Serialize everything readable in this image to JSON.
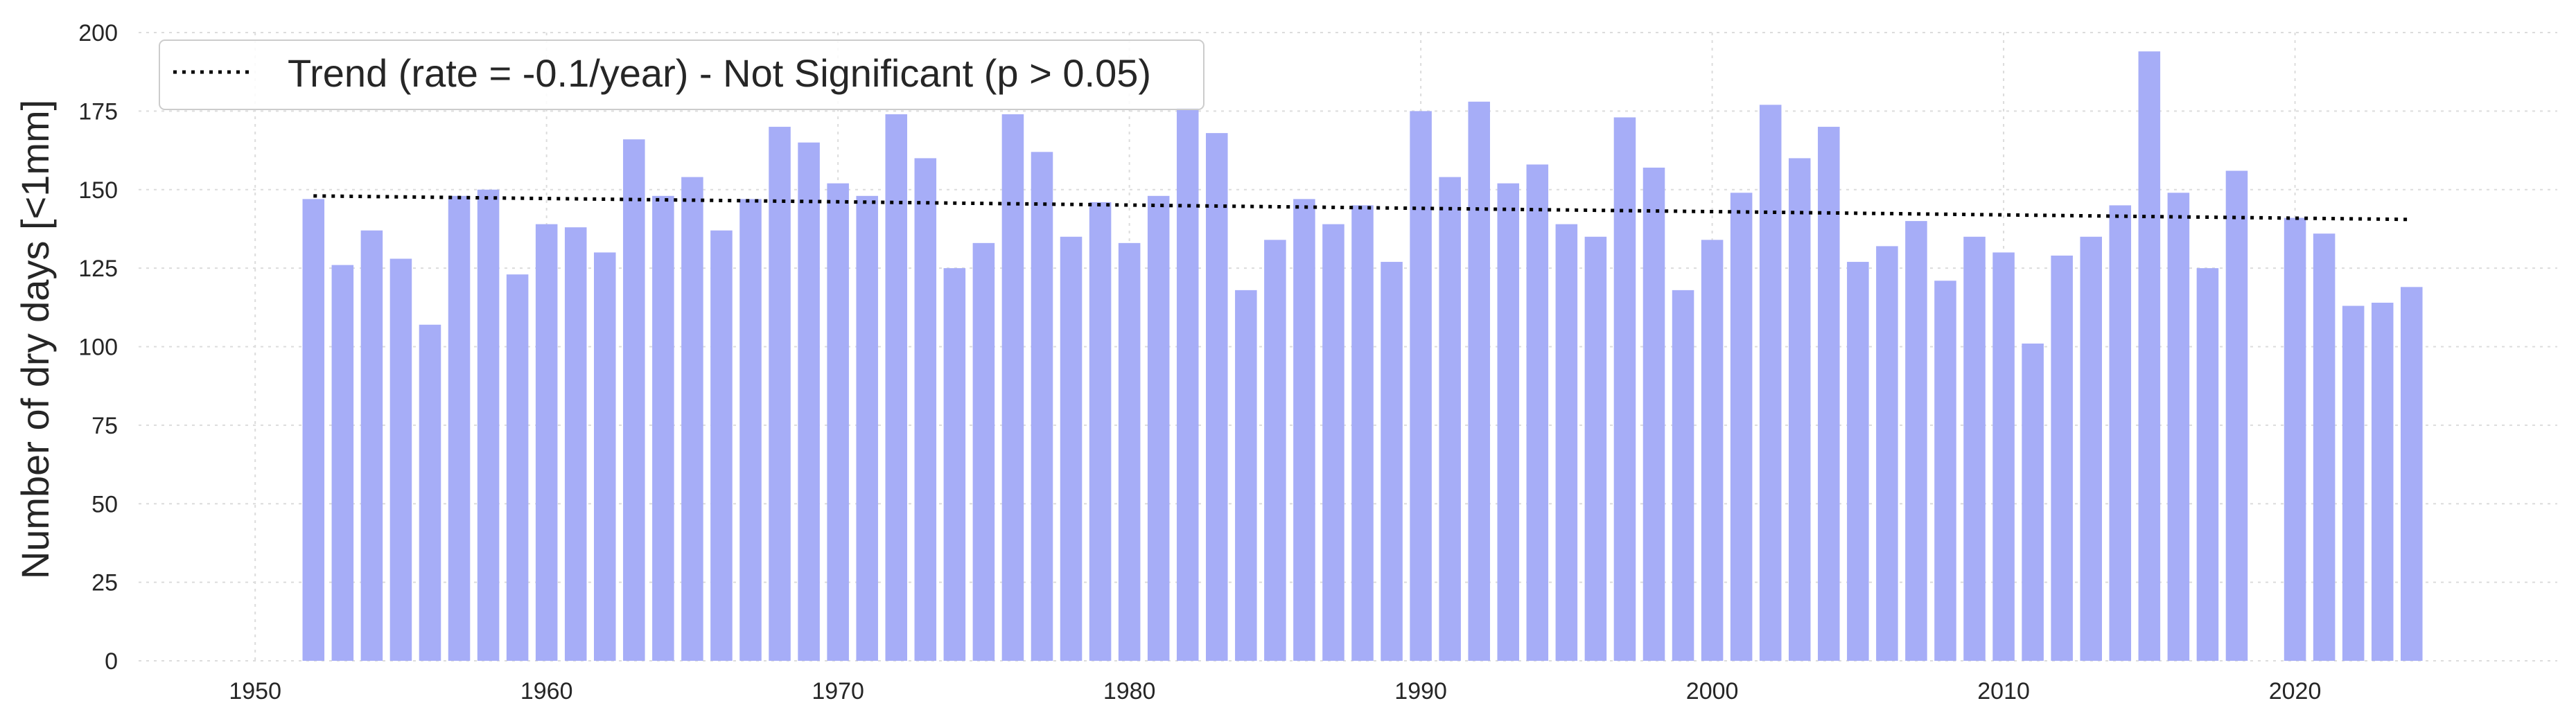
{
  "chart_data": {
    "type": "bar",
    "title": "",
    "xlabel": "",
    "ylabel": "Number of dry days [<1mm]",
    "xlim": [
      1946,
      2029
    ],
    "ylim": [
      0,
      200
    ],
    "x_ticks": [
      1950,
      1960,
      1970,
      1980,
      1990,
      2000,
      2010,
      2020
    ],
    "y_ticks": [
      0,
      25,
      50,
      75,
      100,
      125,
      150,
      175,
      200
    ],
    "grid": true,
    "legend_position": "top-left",
    "colors": {
      "bars": "#a6adf7",
      "trend": "#000000"
    },
    "series": [
      {
        "type": "bar",
        "x": [
          1952,
          1953,
          1954,
          1955,
          1956,
          1957,
          1958,
          1959,
          1960,
          1961,
          1962,
          1963,
          1964,
          1965,
          1966,
          1967,
          1968,
          1969,
          1970,
          1971,
          1972,
          1973,
          1974,
          1975,
          1976,
          1977,
          1978,
          1979,
          1980,
          1981,
          1982,
          1983,
          1984,
          1985,
          1986,
          1987,
          1988,
          1989,
          1990,
          1991,
          1992,
          1993,
          1994,
          1995,
          1996,
          1997,
          1998,
          1999,
          2000,
          2001,
          2002,
          2003,
          2004,
          2005,
          2006,
          2007,
          2008,
          2009,
          2010,
          2011,
          2012,
          2013,
          2014,
          2015,
          2016,
          2017,
          2018,
          2020,
          2021,
          2022,
          2023,
          2024
        ],
        "values": [
          147,
          126,
          137,
          128,
          107,
          148,
          150,
          123,
          139,
          138,
          130,
          166,
          148,
          154,
          137,
          147,
          170,
          165,
          152,
          148,
          174,
          160,
          125,
          133,
          174,
          162,
          135,
          146,
          133,
          148,
          176,
          168,
          118,
          134,
          147,
          139,
          145,
          127,
          175,
          154,
          178,
          152,
          158,
          139,
          135,
          173,
          157,
          118,
          134,
          149,
          177,
          160,
          170,
          127,
          132,
          140,
          121,
          135,
          130,
          101,
          129,
          135,
          145,
          194,
          149,
          125,
          156,
          141,
          136,
          113,
          114,
          119
        ]
      },
      {
        "name": "Trend (rate = -0.1/year) - Not Significant (p > 0.05)",
        "type": "line",
        "style": "dotted",
        "x": [
          1952,
          2024
        ],
        "values": [
          148,
          140.5
        ]
      }
    ]
  }
}
